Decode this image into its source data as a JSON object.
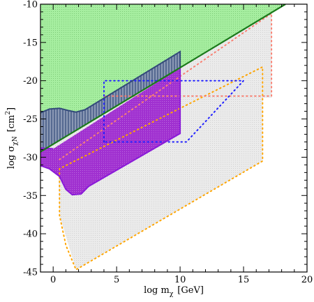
{
  "chart_data": {
    "type": "area",
    "xlabel": {
      "main": "log m",
      "sub": "χ",
      "unit": "[GeV]"
    },
    "ylabel": {
      "main": "log σ",
      "sub": "χN",
      "unit_open": "[cm",
      "unit_sup": "2",
      "unit_close": "]"
    },
    "xlim": [
      -1,
      20
    ],
    "ylim": [
      -45,
      -10
    ],
    "xticks": [
      0,
      5,
      10,
      15,
      20
    ],
    "yticks": [
      -45,
      -40,
      -35,
      -30,
      -25,
      -20,
      -15,
      -10
    ],
    "xtick_labels": [
      "0",
      "5",
      "10",
      "15",
      "20"
    ],
    "ytick_labels": [
      "-45",
      "-40",
      "-35",
      "-30",
      "-25",
      "-20",
      "-15",
      "-10"
    ],
    "grid": false,
    "colors": {
      "green_fill": "#a6eea0",
      "green_line": "#1a7a1a",
      "gray_fill": "#ebebeb",
      "hatch_fill": "#8a98b4",
      "hatch_line": "#334a7a",
      "purple_fill": "#a030d0",
      "purple_line": "#8a1ad8",
      "orange": "#ffa500",
      "blue": "#2020ff",
      "red": "#ff2020",
      "salmon": "#fa8072"
    },
    "regions": [
      {
        "id": "green",
        "points": [
          [
            -1,
            -29.3
          ],
          [
            18.3,
            -10
          ],
          [
            -1,
            -10
          ]
        ]
      },
      {
        "id": "gray",
        "points": [
          [
            -1,
            -29.3
          ],
          [
            17.2,
            -11.2
          ],
          [
            17.2,
            -22.2
          ],
          [
            16.5,
            -22.2
          ],
          [
            16.5,
            -30.5
          ],
          [
            1.8,
            -44.7
          ],
          [
            0.5,
            -37.6
          ],
          [
            0.4,
            -31.3
          ],
          [
            -1,
            -31.3
          ]
        ]
      },
      {
        "id": "hatched",
        "points": [
          [
            -1,
            -24.2
          ],
          [
            -0.3,
            -23.7
          ],
          [
            0.5,
            -23.6
          ],
          [
            1.2,
            -23.9
          ],
          [
            1.8,
            -24.1
          ],
          [
            2.5,
            -23.8
          ],
          [
            10,
            -16.2
          ],
          [
            10,
            -18.3
          ],
          [
            -1,
            -29.3
          ]
        ]
      },
      {
        "id": "purple",
        "points": [
          [
            -1,
            -28.8
          ],
          [
            0,
            -28.9
          ],
          [
            10,
            -18.3
          ],
          [
            10,
            -26.9
          ],
          [
            2.8,
            -33.8
          ],
          [
            2.2,
            -34.8
          ],
          [
            1.5,
            -34.9
          ],
          [
            1,
            -34.2
          ],
          [
            0.5,
            -32.5
          ],
          [
            -0.3,
            -31.5
          ],
          [
            -1,
            -31.1
          ]
        ]
      }
    ],
    "lines": [
      {
        "id": "green-boundary",
        "style": "solid",
        "points": [
          [
            -1,
            -29.3
          ],
          [
            18.3,
            -10
          ]
        ]
      },
      {
        "id": "purple-boundary",
        "style": "solid",
        "points": [
          [
            -1,
            -31.1
          ],
          [
            -0.3,
            -31.5
          ],
          [
            0.5,
            -32.5
          ],
          [
            1,
            -34.2
          ],
          [
            1.5,
            -34.9
          ],
          [
            2.2,
            -34.8
          ],
          [
            2.8,
            -33.8
          ],
          [
            10,
            -26.9
          ],
          [
            10,
            -18.3
          ]
        ]
      },
      {
        "id": "purple-left",
        "style": "solid",
        "points": [
          [
            -1,
            -28.8
          ],
          [
            0,
            -28.9
          ]
        ]
      },
      {
        "id": "hatch-top",
        "style": "solid",
        "points": [
          [
            -1,
            -24.2
          ],
          [
            -0.3,
            -23.7
          ],
          [
            0.5,
            -23.6
          ],
          [
            1.2,
            -23.9
          ],
          [
            1.8,
            -24.1
          ],
          [
            2.5,
            -23.8
          ],
          [
            10,
            -16.2
          ],
          [
            10,
            -18.3
          ]
        ]
      },
      {
        "id": "orange-boundary",
        "style": "dotted",
        "points": [
          [
            0.5,
            -31.5
          ],
          [
            0.5,
            -37.6
          ],
          [
            1,
            -41.5
          ],
          [
            1.8,
            -44.7
          ],
          [
            16.5,
            -30.5
          ],
          [
            16.5,
            -18.2
          ],
          [
            0.5,
            -31.5
          ]
        ]
      },
      {
        "id": "blue-box",
        "style": "dotted",
        "points": [
          [
            4,
            -28
          ],
          [
            4,
            -20
          ],
          [
            15,
            -20
          ],
          [
            10.5,
            -28
          ],
          [
            4,
            -28
          ]
        ]
      },
      {
        "id": "red-box",
        "style": "dotted",
        "points": [
          [
            0.5,
            -30.3
          ],
          [
            17.2,
            -11.2
          ],
          [
            17.2,
            -22
          ],
          [
            4,
            -22
          ]
        ]
      }
    ]
  }
}
